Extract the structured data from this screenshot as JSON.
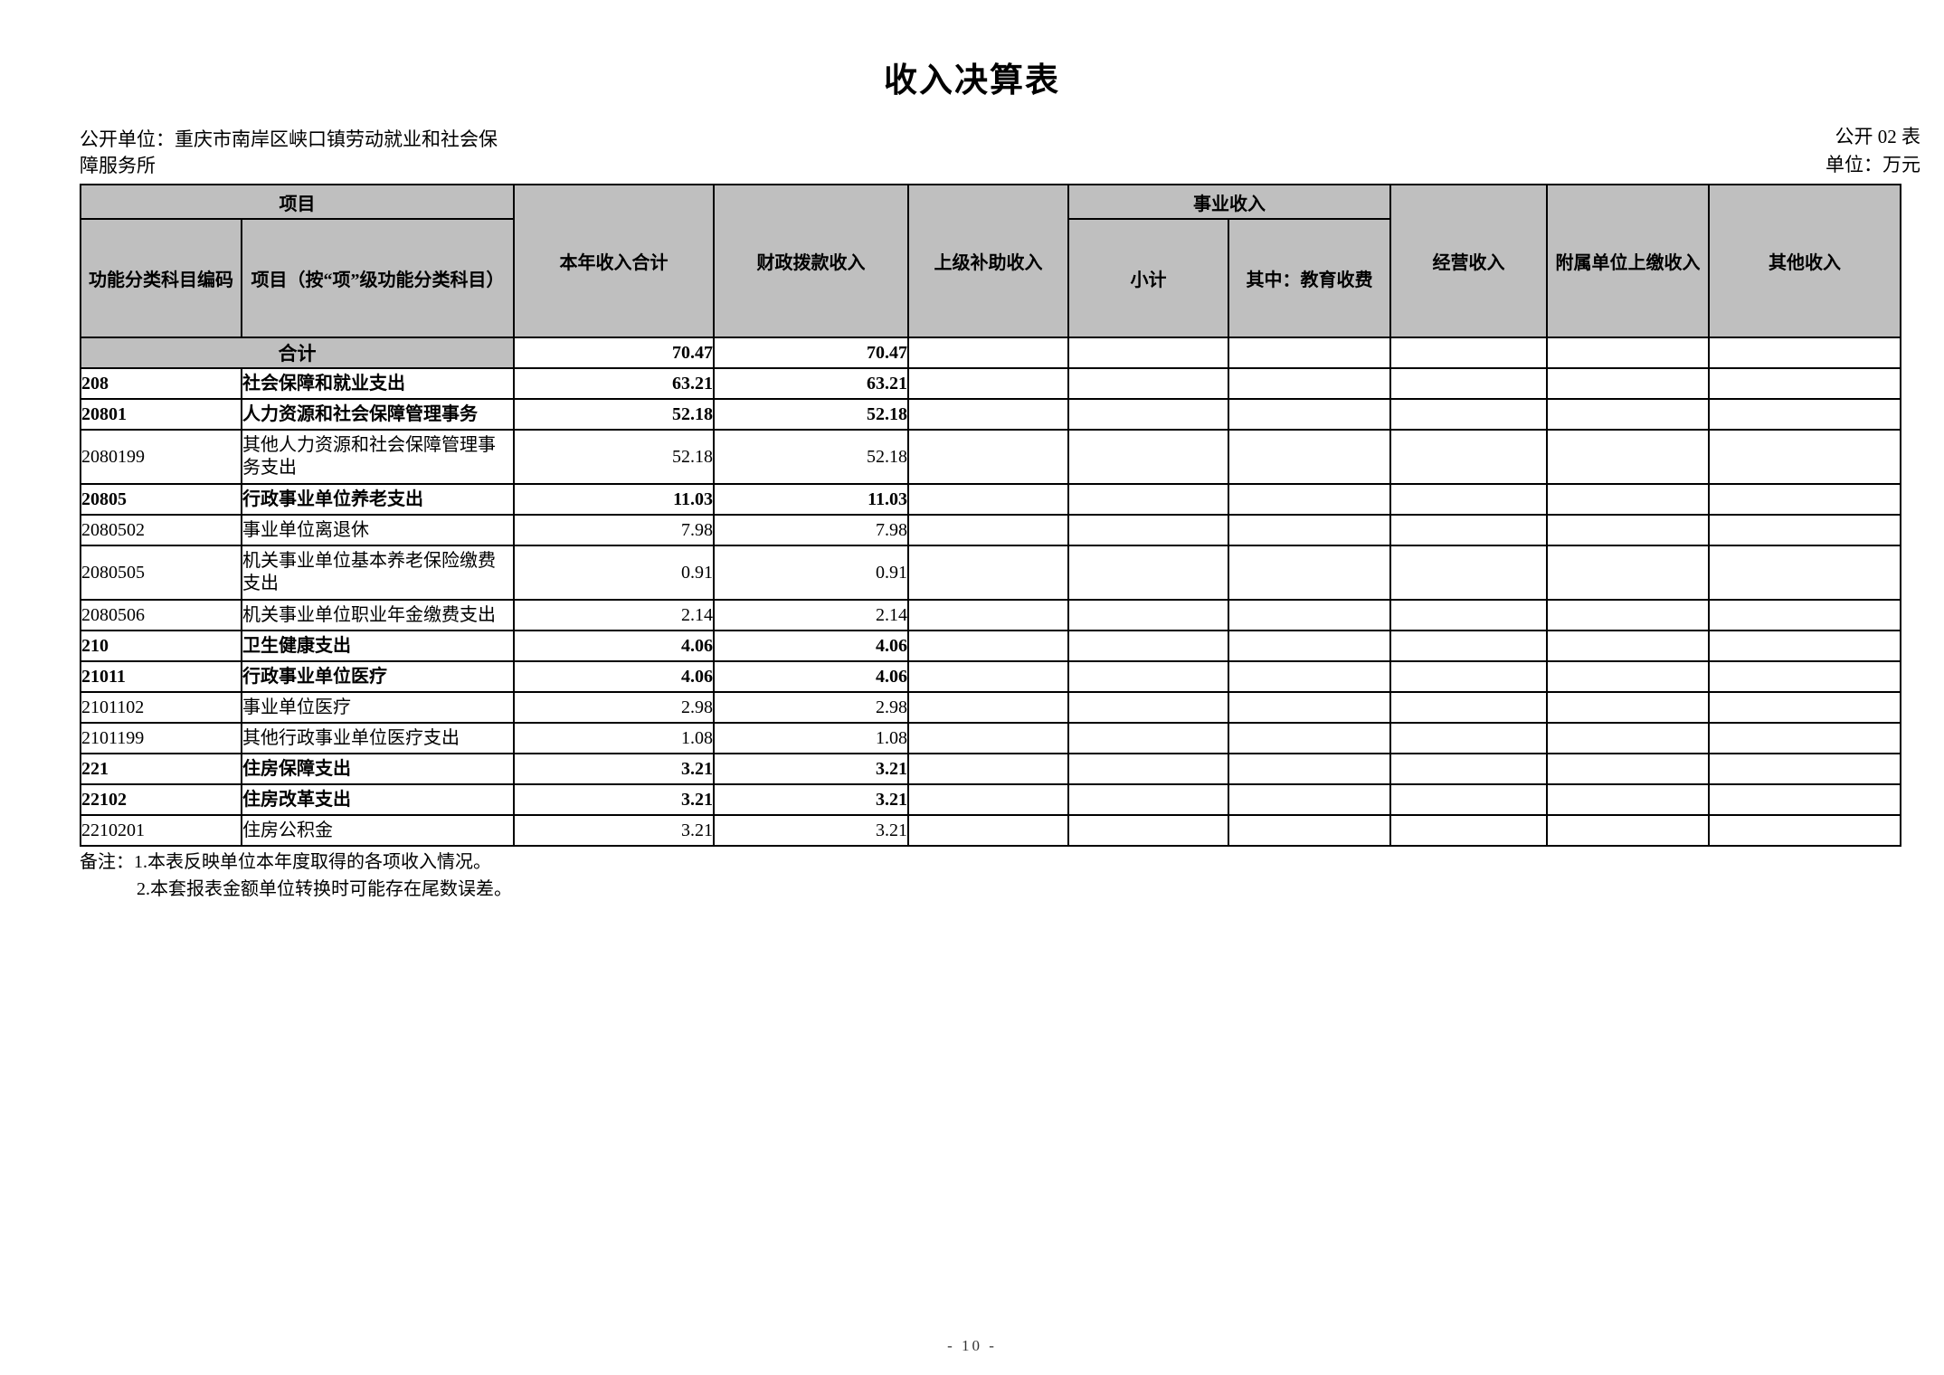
{
  "colors": {
    "header_gray": "#bfbfbf",
    "project_gray": "#d9d9d9",
    "border": "#000000",
    "text": "#000000"
  },
  "page": {
    "title": "收入决算表",
    "meta_left": "公开单位：重庆市南岸区峡口镇劳动就业和社会保障服务所",
    "meta_right_line1": "公开 02 表",
    "meta_right_line2": "单位：万元",
    "footer_page_number": "- 10 -"
  },
  "notes": {
    "line1": "备注：1.本表反映单位本年度取得的各项收入情况。",
    "line2": "2.本套报表金额单位转换时可能存在尾数误差。"
  },
  "table": {
    "header": {
      "group_project": "项目",
      "col_code": "功能分类科目编码",
      "col_item": "项目（按“项”级功能分类科目）",
      "col_total": "本年收入合计",
      "col_fiscal": "财政拨款收入",
      "col_superior": "上级补助收入",
      "group_business": "事业收入",
      "col_subtotal": "小计",
      "col_education": "其中：教育收费",
      "col_operating": "经营收入",
      "col_affiliated": "附属单位上缴收入",
      "col_other": "其他收入"
    },
    "rows": [
      {
        "code": "",
        "name": "合计",
        "total": "70.47",
        "fiscal": "70.47",
        "superior": "",
        "subtotal": "",
        "education": "",
        "operating": "",
        "affiliated": "",
        "other": "",
        "bold": true,
        "grand_total": true,
        "tall": false
      },
      {
        "code": "208",
        "name": "社会保障和就业支出",
        "total": "63.21",
        "fiscal": "63.21",
        "superior": "",
        "subtotal": "",
        "education": "",
        "operating": "",
        "affiliated": "",
        "other": "",
        "bold": true,
        "grand_total": false,
        "tall": false
      },
      {
        "code": "20801",
        "name": "人力资源和社会保障管理事务",
        "total": "52.18",
        "fiscal": "52.18",
        "superior": "",
        "subtotal": "",
        "education": "",
        "operating": "",
        "affiliated": "",
        "other": "",
        "bold": true,
        "grand_total": false,
        "tall": false
      },
      {
        "code": "2080199",
        "name": "其他人力资源和社会保障管理事务支出",
        "total": "52.18",
        "fiscal": "52.18",
        "superior": "",
        "subtotal": "",
        "education": "",
        "operating": "",
        "affiliated": "",
        "other": "",
        "bold": false,
        "grand_total": false,
        "tall": true
      },
      {
        "code": "20805",
        "name": "行政事业单位养老支出",
        "total": "11.03",
        "fiscal": "11.03",
        "superior": "",
        "subtotal": "",
        "education": "",
        "operating": "",
        "affiliated": "",
        "other": "",
        "bold": true,
        "grand_total": false,
        "tall": false
      },
      {
        "code": "2080502",
        "name": "事业单位离退休",
        "total": "7.98",
        "fiscal": "7.98",
        "superior": "",
        "subtotal": "",
        "education": "",
        "operating": "",
        "affiliated": "",
        "other": "",
        "bold": false,
        "grand_total": false,
        "tall": false
      },
      {
        "code": "2080505",
        "name": "机关事业单位基本养老保险缴费支出",
        "total": "0.91",
        "fiscal": "0.91",
        "superior": "",
        "subtotal": "",
        "education": "",
        "operating": "",
        "affiliated": "",
        "other": "",
        "bold": false,
        "grand_total": false,
        "tall": true
      },
      {
        "code": "2080506",
        "name": "机关事业单位职业年金缴费支出",
        "total": "2.14",
        "fiscal": "2.14",
        "superior": "",
        "subtotal": "",
        "education": "",
        "operating": "",
        "affiliated": "",
        "other": "",
        "bold": false,
        "grand_total": false,
        "tall": false
      },
      {
        "code": "210",
        "name": "卫生健康支出",
        "total": "4.06",
        "fiscal": "4.06",
        "superior": "",
        "subtotal": "",
        "education": "",
        "operating": "",
        "affiliated": "",
        "other": "",
        "bold": true,
        "grand_total": false,
        "tall": false
      },
      {
        "code": "21011",
        "name": "行政事业单位医疗",
        "total": "4.06",
        "fiscal": "4.06",
        "superior": "",
        "subtotal": "",
        "education": "",
        "operating": "",
        "affiliated": "",
        "other": "",
        "bold": true,
        "grand_total": false,
        "tall": false
      },
      {
        "code": "2101102",
        "name": "事业单位医疗",
        "total": "2.98",
        "fiscal": "2.98",
        "superior": "",
        "subtotal": "",
        "education": "",
        "operating": "",
        "affiliated": "",
        "other": "",
        "bold": false,
        "grand_total": false,
        "tall": false
      },
      {
        "code": "2101199",
        "name": "其他行政事业单位医疗支出",
        "total": "1.08",
        "fiscal": "1.08",
        "superior": "",
        "subtotal": "",
        "education": "",
        "operating": "",
        "affiliated": "",
        "other": "",
        "bold": false,
        "grand_total": false,
        "tall": false
      },
      {
        "code": "221",
        "name": "住房保障支出",
        "total": "3.21",
        "fiscal": "3.21",
        "superior": "",
        "subtotal": "",
        "education": "",
        "operating": "",
        "affiliated": "",
        "other": "",
        "bold": true,
        "grand_total": false,
        "tall": false
      },
      {
        "code": "22102",
        "name": "住房改革支出",
        "total": "3.21",
        "fiscal": "3.21",
        "superior": "",
        "subtotal": "",
        "education": "",
        "operating": "",
        "affiliated": "",
        "other": "",
        "bold": true,
        "grand_total": false,
        "tall": false
      },
      {
        "code": "2210201",
        "name": "住房公积金",
        "total": "3.21",
        "fiscal": "3.21",
        "superior": "",
        "subtotal": "",
        "education": "",
        "operating": "",
        "affiliated": "",
        "other": "",
        "bold": false,
        "grand_total": false,
        "tall": false
      }
    ]
  }
}
